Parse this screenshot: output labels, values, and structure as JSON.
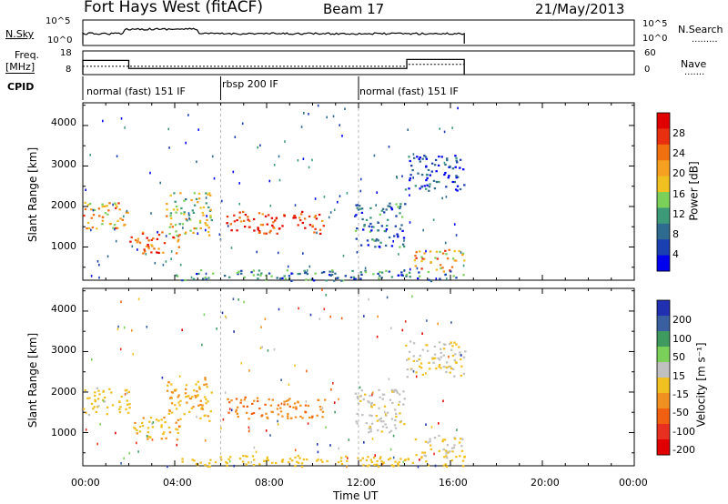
{
  "header": {
    "title": "Fort Hays West (fitACF)",
    "beam": "Beam 17",
    "date": "21/May/2013"
  },
  "side_labels": {
    "nsky": "N.Sky",
    "freq": "Freq.",
    "freq_unit": "[MHz]",
    "cpid": "CPID",
    "nsearch": "N.Search",
    "nave": "Nave"
  },
  "noise_panel": {
    "left_ticks": [
      "10^5",
      "10^0"
    ],
    "right_ticks": [
      "10^5",
      "10^0"
    ]
  },
  "freq_panel": {
    "left_ticks": [
      "18",
      "8"
    ],
    "right_ticks": [
      "60",
      "0"
    ],
    "freq_mhz": [
      {
        "t": 0.0,
        "v": 14
      },
      {
        "t": 2.0,
        "v": 10.6
      },
      {
        "t": 6.0,
        "v": 10.6
      },
      {
        "t": 11.9,
        "v": 10.6
      },
      {
        "t": 14.1,
        "v": 14.4
      },
      {
        "t": 16.6,
        "v": 14.4
      }
    ],
    "nave": [
      {
        "t": 0.0,
        "v": 21
      },
      {
        "t": 2.0,
        "v": 21
      },
      {
        "t": 14.1,
        "v": 26
      },
      {
        "t": 16.6,
        "v": 26
      }
    ]
  },
  "cpid_segments": [
    {
      "label": "normal (fast) 151 IF",
      "start": 0.0,
      "end": 6.0
    },
    {
      "label": "rbsp 200 IF",
      "start": 6.0,
      "end": 12.0
    },
    {
      "label": "normal (fast) 151 IF",
      "start": 12.0,
      "end": 24.0
    }
  ],
  "axes": {
    "x_label": "Time UT",
    "x_ticks": [
      "00:00",
      "04:00",
      "08:00",
      "12:00",
      "16:00",
      "20:00",
      "00:00"
    ],
    "x_range_hours": [
      0,
      24
    ],
    "y_label": "Slant Range [km]",
    "y_ticks": [
      "1000",
      "2000",
      "3000",
      "4000"
    ],
    "y_range_km": [
      180,
      4560
    ]
  },
  "colorbars": {
    "power": {
      "label": "Power [dB]",
      "ticks": [
        "28",
        "24",
        "20",
        "16",
        "12",
        "8",
        "4"
      ],
      "colors": [
        "#0000ee",
        "#1a3fb0",
        "#2f6a8f",
        "#3d9a78",
        "#7bd05a",
        "#f0c020",
        "#f5a020",
        "#f07010",
        "#e83010",
        "#e00000"
      ]
    },
    "velocity": {
      "label": "Velocity [m s⁻¹]",
      "ticks": [
        "200",
        "100",
        "50",
        "15",
        "-15",
        "-50",
        "-100",
        "-200"
      ],
      "colors": [
        "#2030b0",
        "#3a5fa0",
        "#3f9a60",
        "#7bd05a",
        "#c0c0c0",
        "#f0c020",
        "#f09020",
        "#f06010",
        "#e83020",
        "#e00000"
      ]
    }
  },
  "chart_data": {
    "type": "heatmap",
    "title": "Fort Hays West (fitACF)",
    "xlabel": "Time UT",
    "ylabel": "Slant Range [km]",
    "xlim_hours": [
      0,
      24
    ],
    "ylim_km": [
      180,
      4560
    ],
    "scatter_regions": [
      {
        "t": [
          0.0,
          2.0
        ],
        "r": [
          1450,
          2150
        ],
        "power_db": 20,
        "velocity": -15
      },
      {
        "t": [
          2.0,
          4.2
        ],
        "r": [
          850,
          1400
        ],
        "power_db": 24,
        "velocity": -30
      },
      {
        "t": [
          3.6,
          5.6
        ],
        "r": [
          1300,
          2400
        ],
        "power_db": 16,
        "velocity": -40
      },
      {
        "t": [
          6.2,
          10.5
        ],
        "r": [
          1350,
          1900
        ],
        "power_db": 26,
        "velocity": -70
      },
      {
        "t": [
          11.8,
          14.0
        ],
        "r": [
          1000,
          2100
        ],
        "power_db": 8,
        "velocity": 10
      },
      {
        "t": [
          14.0,
          16.6
        ],
        "r": [
          2400,
          3300
        ],
        "power_db": 6,
        "velocity": 0
      },
      {
        "t": [
          14.4,
          16.6
        ],
        "r": [
          400,
          950
        ],
        "power_db": 20,
        "velocity": 0
      },
      {
        "t": [
          4.0,
          16.6
        ],
        "r": [
          180,
          450
        ],
        "power_db": 10,
        "velocity": -20
      }
    ]
  }
}
